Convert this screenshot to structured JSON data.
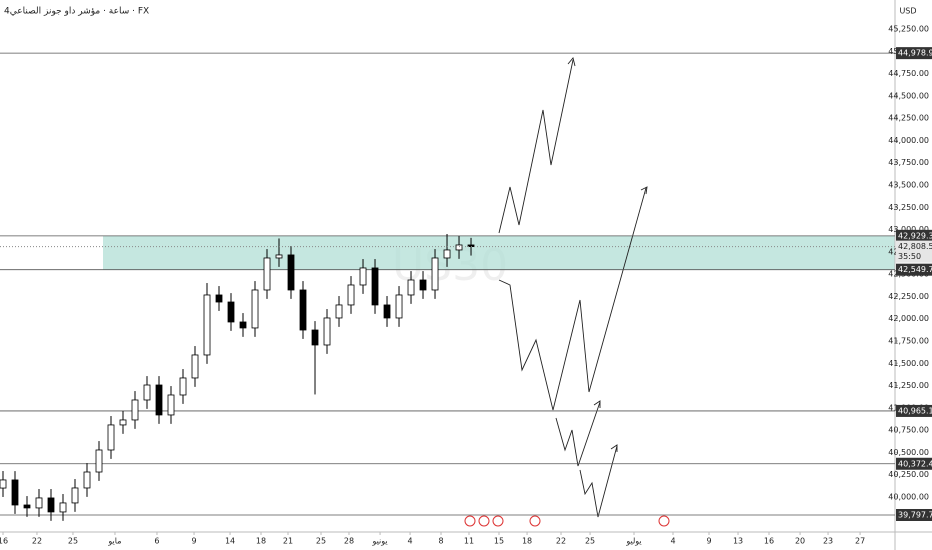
{
  "chart_data": {
    "type": "candlestick",
    "title": "4ساعة · مؤشر داو جونز الصناعي · FX",
    "currency": "USD",
    "watermark": "US30",
    "x": [
      0,
      1,
      2,
      3,
      4,
      5,
      6,
      7,
      8,
      9,
      10,
      11,
      12,
      13,
      14,
      15,
      16,
      17,
      18,
      19,
      20,
      21,
      22,
      23,
      24,
      25,
      26,
      27,
      28,
      29,
      30,
      31,
      32,
      33,
      34,
      35,
      36,
      37,
      38,
      39
    ],
    "open": [
      40100,
      40191,
      39910,
      39877,
      39989,
      39832,
      39933,
      40101,
      40280,
      40527,
      40808,
      40864,
      41088,
      41256,
      40920,
      41144,
      41335,
      41593,
      42266,
      42187,
      41963,
      41896,
      42322,
      42681,
      42715,
      42322,
      41873,
      41705,
      42008,
      42154,
      42378,
      42569,
      42154,
      42008,
      42266,
      42434,
      42322,
      42681,
      42771,
      42827
    ],
    "high": [
      40291,
      40290,
      40010,
      40089,
      40089,
      40033,
      40201,
      40380,
      40627,
      40908,
      40964,
      41188,
      41356,
      41356,
      41244,
      41435,
      41693,
      42400,
      42366,
      42287,
      42063,
      42422,
      42781,
      42900,
      42815,
      42422,
      41973,
      42108,
      42254,
      42478,
      42669,
      42669,
      42254,
      42366,
      42534,
      42534,
      42781,
      42950,
      42927,
      42907
    ],
    "low": [
      40000,
      39810,
      39777,
      39777,
      39732,
      39732,
      39833,
      40001,
      40180,
      40427,
      40708,
      40764,
      40988,
      40820,
      40820,
      41044,
      41235,
      41493,
      42087,
      41863,
      41796,
      41796,
      42222,
      42581,
      42222,
      41773,
      41150,
      41605,
      41908,
      42054,
      42278,
      42054,
      41908,
      41908,
      42166,
      42222,
      42222,
      42581,
      42671,
      42708
    ],
    "close": [
      40191,
      39910,
      39877,
      39989,
      39832,
      39933,
      40101,
      40280,
      40527,
      40808,
      40864,
      41088,
      41256,
      40920,
      41144,
      41335,
      41593,
      42266,
      42187,
      41963,
      41896,
      42322,
      42681,
      42715,
      42322,
      41873,
      41705,
      42008,
      42154,
      42378,
      42569,
      42154,
      42008,
      42266,
      42434,
      42322,
      42681,
      42771,
      42827,
      42808.57
    ],
    "up_color": "#ffffff",
    "down_color": "#000000",
    "xlim": [
      -0.25,
      74.33
    ],
    "xticks": [
      {
        "value": 0,
        "label": "16"
      },
      {
        "value": 2.83,
        "label": "22"
      },
      {
        "value": 5.83,
        "label": "25"
      },
      {
        "value": 9.33,
        "label": "مايو"
      },
      {
        "value": 12.83,
        "label": "6"
      },
      {
        "value": 15.92,
        "label": "9"
      },
      {
        "value": 18.92,
        "label": "14"
      },
      {
        "value": 21.5,
        "label": "18"
      },
      {
        "value": 23.75,
        "label": "21"
      },
      {
        "value": 26.5,
        "label": "25"
      },
      {
        "value": 28.83,
        "label": "28"
      },
      {
        "value": 31.42,
        "label": "يونيو"
      },
      {
        "value": 33.92,
        "label": "4"
      },
      {
        "value": 36.5,
        "label": "8"
      },
      {
        "value": 38.83,
        "label": "11"
      },
      {
        "value": 41.33,
        "label": "15"
      },
      {
        "value": 43.67,
        "label": "18"
      },
      {
        "value": 46.5,
        "label": "22"
      },
      {
        "value": 48.92,
        "label": "25"
      },
      {
        "value": 52.58,
        "label": "يوليو"
      },
      {
        "value": 55.83,
        "label": "4"
      },
      {
        "value": 58.83,
        "label": "9"
      },
      {
        "value": 61.25,
        "label": "13"
      },
      {
        "value": 63.83,
        "label": "16"
      },
      {
        "value": 66.42,
        "label": "20"
      },
      {
        "value": 68.75,
        "label": "23"
      },
      {
        "value": 71.42,
        "label": "27"
      }
    ],
    "ylim": [
      39607,
      45575
    ],
    "yticks": [
      {
        "value": 40000,
        "label": "40,000.00"
      },
      {
        "value": 40250,
        "label": "40,250.00"
      },
      {
        "value": 40500,
        "label": "40,500.00"
      },
      {
        "value": 40750,
        "label": "40,750.00"
      },
      {
        "value": 41000,
        "label": "41,000.00"
      },
      {
        "value": 41250,
        "label": "41,250.00"
      },
      {
        "value": 41500,
        "label": "41,500.00"
      },
      {
        "value": 41750,
        "label": "41,750.00"
      },
      {
        "value": 42000,
        "label": "42,000.00"
      },
      {
        "value": 42250,
        "label": "42,250.00"
      },
      {
        "value": 42500,
        "label": "42,500.00"
      },
      {
        "value": 42750,
        "label": "42,750.00"
      },
      {
        "value": 43000,
        "label": "43,000.00"
      },
      {
        "value": 43250,
        "label": "43,250.00"
      },
      {
        "value": 43500,
        "label": "43,500.00"
      },
      {
        "value": 43750,
        "label": "43,750.00"
      },
      {
        "value": 44000,
        "label": "44,000.00"
      },
      {
        "value": 44250,
        "label": "44,250.00"
      },
      {
        "value": 44500,
        "label": "44,500.00"
      },
      {
        "value": 44750,
        "label": "44,750.00"
      },
      {
        "value": 45000,
        "label": "45,000.00"
      },
      {
        "value": 45250,
        "label": "45,250.00"
      }
    ],
    "price_lines": [
      {
        "value": 44978.96,
        "label": "44,978.96"
      },
      {
        "value": 42929.3,
        "label": "42,929.30"
      },
      {
        "value": 42549.7,
        "label": "42,549.70"
      },
      {
        "value": 40965.15,
        "label": "40,965.15"
      },
      {
        "value": 40372.47,
        "label": "40,372.47"
      },
      {
        "value": 39797.75,
        "label": "39,797.75"
      }
    ],
    "zone": {
      "low": 42549.7,
      "high": 42929.3,
      "color": "#b2dfd6"
    },
    "last_price": {
      "value": 42808.57,
      "label": "42,808.57"
    },
    "countdown": "35:50"
  }
}
